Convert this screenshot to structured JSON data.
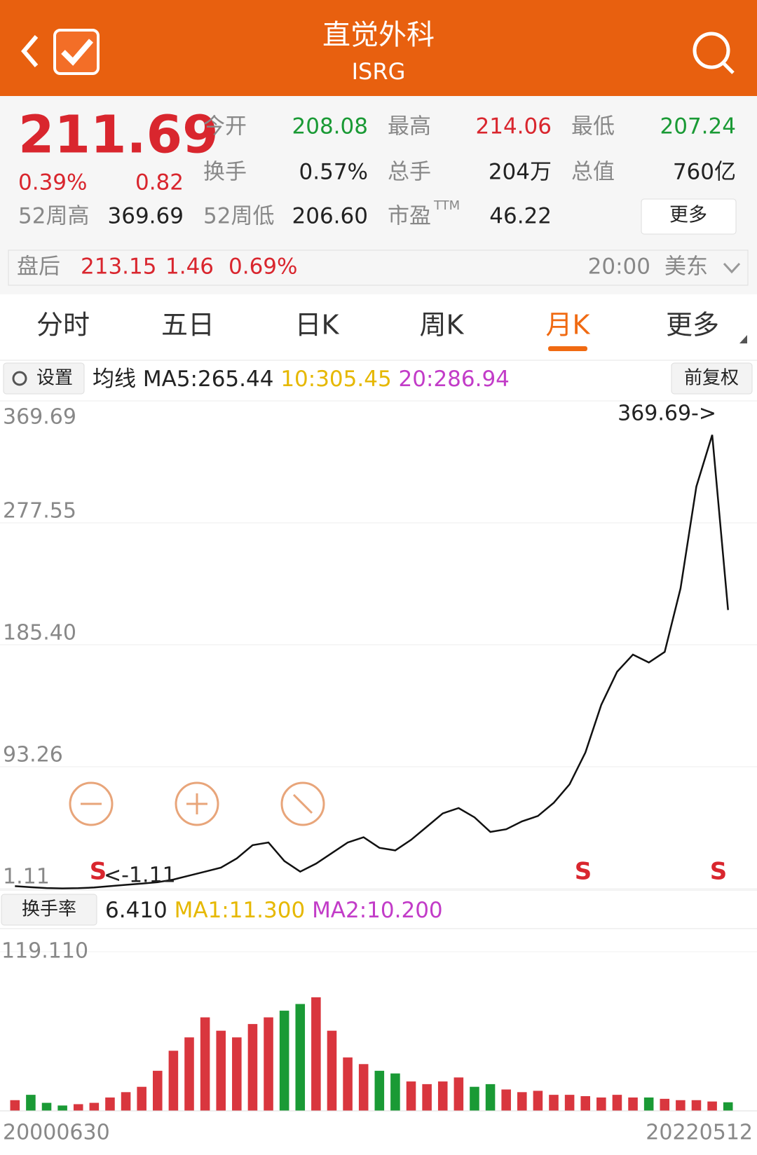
{
  "header": {
    "title": "直觉外科",
    "subtitle": "ISRG"
  },
  "quote": {
    "price": "211.69",
    "change_pct": "0.39%",
    "change": "0.82",
    "week52_high_label": "52周高",
    "week52_high": "369.69",
    "week52_low_label": "52周低",
    "week52_low": "206.60",
    "open_label": "今开",
    "open": "208.08",
    "high_label": "最高",
    "high": "214.06",
    "low_label": "最低",
    "low": "207.24",
    "turnover_label": "换手",
    "turnover": "0.57%",
    "volume_label": "总手",
    "volume": "204万",
    "mcap_label": "总值",
    "mcap": "760亿",
    "pe_label": "市盈",
    "pe_sup": "TTM",
    "pe": "46.22",
    "more": "更多"
  },
  "after_hours": {
    "label": "盘后",
    "price": "213.15",
    "change": "1.46",
    "change_pct": "0.69%",
    "time": "20:00",
    "market": "美东"
  },
  "tabs": [
    "分时",
    "五日",
    "日K",
    "周K",
    "月K",
    "更多"
  ],
  "ma_bar": {
    "settings": "设置",
    "label": "均线",
    "ma5": "MA5:265.44",
    "ma10": "10:305.45",
    "ma20": "20:286.94",
    "adjust": "前复权"
  },
  "chart_data": [
    {
      "type": "line",
      "color": "#111111",
      "grid": true,
      "categories": [
        "20000630",
        null,
        null,
        null,
        null,
        null,
        null,
        null,
        null,
        null,
        null,
        null,
        null,
        null,
        null,
        null,
        null,
        null,
        null,
        null,
        null,
        null,
        null,
        null,
        null,
        null,
        null,
        null,
        null,
        null,
        null,
        null,
        null,
        null,
        null,
        null,
        null,
        null,
        null,
        null,
        null,
        null,
        null,
        null,
        null,
        "20220512"
      ],
      "values": [
        3,
        2.2,
        1.6,
        1.3,
        1.5,
        2,
        3,
        4,
        5,
        6,
        8,
        11,
        14,
        17,
        24,
        34,
        36,
        22,
        14,
        20,
        28,
        36,
        40,
        32,
        30,
        38,
        48,
        58,
        62,
        55,
        44,
        46,
        52,
        56,
        66,
        80,
        104,
        140,
        165,
        178,
        172,
        180,
        228,
        305,
        344,
        211.69
      ],
      "ylim": [
        1.11,
        369.69
      ],
      "yticks": [
        369.69,
        277.55,
        {
          "value": 185.4,
          "label": "185.40"
        },
        93.26,
        1.11
      ],
      "annotations": [
        "369.69->",
        "<-1.11",
        "S",
        "S",
        "S"
      ]
    },
    {
      "type": "bar",
      "title": "换手率",
      "value_text": "6.410",
      "ma1": "MA1:11.300",
      "ma2": "MA2:10.200",
      "up_color": "#d9363e",
      "down_color": "#1a9a35",
      "values": [
        8,
        12,
        6,
        4,
        5,
        6,
        10,
        14,
        18,
        30,
        45,
        55,
        70,
        60,
        55,
        65,
        70,
        75,
        80,
        85,
        60,
        40,
        35,
        30,
        28,
        22,
        20,
        22,
        25,
        18,
        20,
        16,
        14,
        15,
        12,
        12,
        11,
        10,
        12,
        10,
        10,
        9,
        8,
        8,
        7,
        6.41
      ],
      "ylim": [
        0,
        119.11
      ],
      "yticks": [
        {
          "value": 119.11,
          "label": "119.110"
        }
      ]
    }
  ]
}
